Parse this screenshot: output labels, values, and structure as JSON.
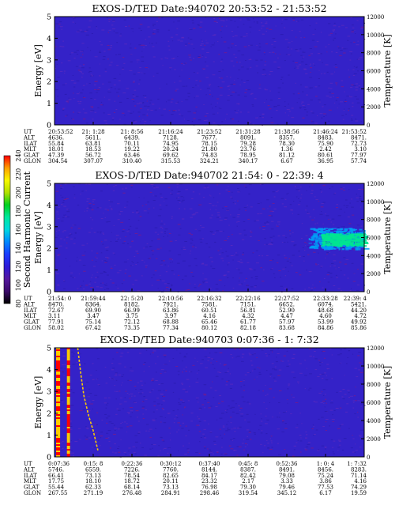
{
  "colors": {
    "background": "#ffffff",
    "plot_base": "#3422c8",
    "plot_noise": "#5a2abf",
    "plot_speckle": "#7a1a8a",
    "axis": "#000000",
    "colorbar_stops": [
      "#000000",
      "#3b0a6a",
      "#5518a0",
      "#2d1ad8",
      "#1a3cff",
      "#0088ff",
      "#00d8e0",
      "#00e8a0",
      "#00d020",
      "#b0e000",
      "#f8f800",
      "#ffa000",
      "#ff0000"
    ]
  },
  "colorbar": {
    "title": "Second Harmonic Current",
    "min": 80,
    "max": 240,
    "ticks": [
      "80",
      "100",
      "120",
      "140",
      "160",
      "180",
      "200",
      "220",
      "240"
    ]
  },
  "chart_data": [
    {
      "type": "heatmap",
      "title": "EXOS-D/TED   Date:940702  20:53:52 - 21:53:52",
      "ylabel": "Energy [eV]",
      "y2label": "Temperature [K]",
      "ylim": [
        0,
        5
      ],
      "y2lim": [
        0,
        12000
      ],
      "yticks": [
        "0",
        "1",
        "2",
        "3",
        "4",
        "5"
      ],
      "y2ticks": [
        "0",
        "2000",
        "4000",
        "6000",
        "8000",
        "10000",
        "12000"
      ],
      "features": [],
      "table": {
        "labels": [
          "UT",
          "ALT",
          "ILAT",
          "MLT",
          "GLAT",
          "GLON"
        ],
        "columns": [
          [
            "20:53:52",
            "4636.",
            "55.84",
            "18.01",
            "47.39",
            "304.54"
          ],
          [
            "21: 1:28",
            "5611.",
            "63.81",
            "18.53",
            "56.72",
            "307.07"
          ],
          [
            "21: 8:56",
            "6439.",
            "70.11",
            "19.22",
            "63.46",
            "310.40"
          ],
          [
            "21:16:24",
            "7128.",
            "74.95",
            "20.24",
            "69.62",
            "315.53"
          ],
          [
            "21:23:52",
            "7677.",
            "78.15",
            "21.80",
            "74.83",
            "324.21"
          ],
          [
            "21:31:28",
            "8091.",
            "79.28",
            "23.76",
            "78.95",
            "340.17"
          ],
          [
            "21:38:56",
            "8357.",
            "78.30",
            "1.36",
            "81.12",
            "6.67"
          ],
          [
            "21:46:24",
            "8483.",
            "75.90",
            "2.42",
            "80.61",
            "36.95"
          ],
          [
            "21:53:52",
            "8471.",
            "72.73",
            "3.10",
            "77.97",
            "57.74"
          ]
        ]
      }
    },
    {
      "type": "heatmap",
      "title": "EXOS-D/TED   Date:940702  21:54: 0 - 22:39: 4",
      "ylabel": "Energy [eV]",
      "y2label": "Temperature [K]",
      "ylim": [
        0,
        5
      ],
      "y2lim": [
        0,
        12000
      ],
      "yticks": [
        "0",
        "1",
        "2",
        "3",
        "4",
        "5"
      ],
      "y2ticks": [
        "0",
        "2000",
        "4000",
        "6000",
        "8000",
        "10000",
        "12000"
      ],
      "features": [
        {
          "kind": "band",
          "x": [
            0.82,
            1.0
          ],
          "energy": [
            2.0,
            2.95
          ],
          "value": 150
        },
        {
          "kind": "band",
          "x": [
            0.86,
            1.0
          ],
          "energy": [
            2.15,
            2.7
          ],
          "value": 175
        }
      ],
      "table": {
        "labels": [
          "UT",
          "ALT",
          "ILAT",
          "MLT",
          "GLAT",
          "GLON"
        ],
        "columns": [
          [
            "21:54: 0",
            "8470.",
            "72.67",
            "3.11",
            "77.91",
            "58.02"
          ],
          [
            "21:59:44",
            "8364.",
            "69.90",
            "3.47",
            "75.14",
            "67.42"
          ],
          [
            "22: 5:20",
            "8182.",
            "66.99",
            "3.75",
            "72.12",
            "73.35"
          ],
          [
            "22:10:56",
            "7921.",
            "63.86",
            "3.97",
            "68.88",
            "77.34"
          ],
          [
            "22:16:32",
            "7581.",
            "60.51",
            "4.16",
            "65.46",
            "80.12"
          ],
          [
            "22:22:16",
            "7151.",
            "56.81",
            "4.32",
            "61.77",
            "82.18"
          ],
          [
            "22:27:52",
            "6652.",
            "52.90",
            "4.47",
            "57.97",
            "83.68"
          ],
          [
            "22:33:28",
            "6074.",
            "48.68",
            "4.60",
            "53.99",
            "84.86"
          ],
          [
            "22:39: 4",
            "5421.",
            "44.20",
            "4.72",
            "49.92",
            "85.86"
          ]
        ]
      }
    },
    {
      "type": "heatmap",
      "title": "EXOS-D/TED   Date:940703   0:07:36 -  1: 7:32",
      "ylabel": "Energy [eV]",
      "y2label": "Temperature [K]",
      "ylim": [
        0,
        5
      ],
      "y2lim": [
        0,
        12000
      ],
      "yticks": [
        "0",
        "1",
        "2",
        "3",
        "4",
        "5"
      ],
      "y2ticks": [
        "0",
        "2000",
        "4000",
        "6000",
        "8000",
        "10000",
        "12000"
      ],
      "features": [
        {
          "kind": "column",
          "x": [
            0.005,
            0.018
          ],
          "energy": [
            0,
            5
          ],
          "value": 240
        },
        {
          "kind": "column",
          "x": [
            0.04,
            0.05
          ],
          "energy": [
            0,
            5
          ],
          "value": 240
        },
        {
          "kind": "trace",
          "x": [
            0.075,
            0.085,
            0.095,
            0.11,
            0.125,
            0.14
          ],
          "energy": [
            5.0,
            3.8,
            2.8,
            1.9,
            1.2,
            0.3
          ],
          "value": 220
        }
      ],
      "table": {
        "labels": [
          "UT",
          "ALT",
          "ILAT",
          "MLT",
          "GLAT",
          "GLON"
        ],
        "columns": [
          [
            "0:07:36",
            "5746.",
            "66.41",
            "17.75",
            "55.44",
            "267.55"
          ],
          [
            "0:15: 8",
            "6559.",
            "73.13",
            "18.10",
            "62.33",
            "271.19"
          ],
          [
            "0:22:36",
            "7226.",
            "78.54",
            "18.72",
            "68.14",
            "276.48"
          ],
          [
            "0:30:12",
            "7760.",
            "82.65",
            "20.11",
            "73.13",
            "284.91"
          ],
          [
            "0:37:40",
            "8144.",
            "84.17",
            "23.32",
            "76.98",
            "298.46"
          ],
          [
            "0:45: 8",
            "8387.",
            "82.42",
            "2.17",
            "79.30",
            "319.54"
          ],
          [
            "0:52:36",
            "8491.",
            "79.08",
            "3.33",
            "79.46",
            "345.12"
          ],
          [
            "1: 0: 4",
            "8456.",
            "75.24",
            "3.86",
            "77.53",
            "6.17"
          ],
          [
            "1: 7:32",
            "8283.",
            "71.14",
            "4.16",
            "74.29",
            "19.59"
          ]
        ]
      }
    }
  ]
}
